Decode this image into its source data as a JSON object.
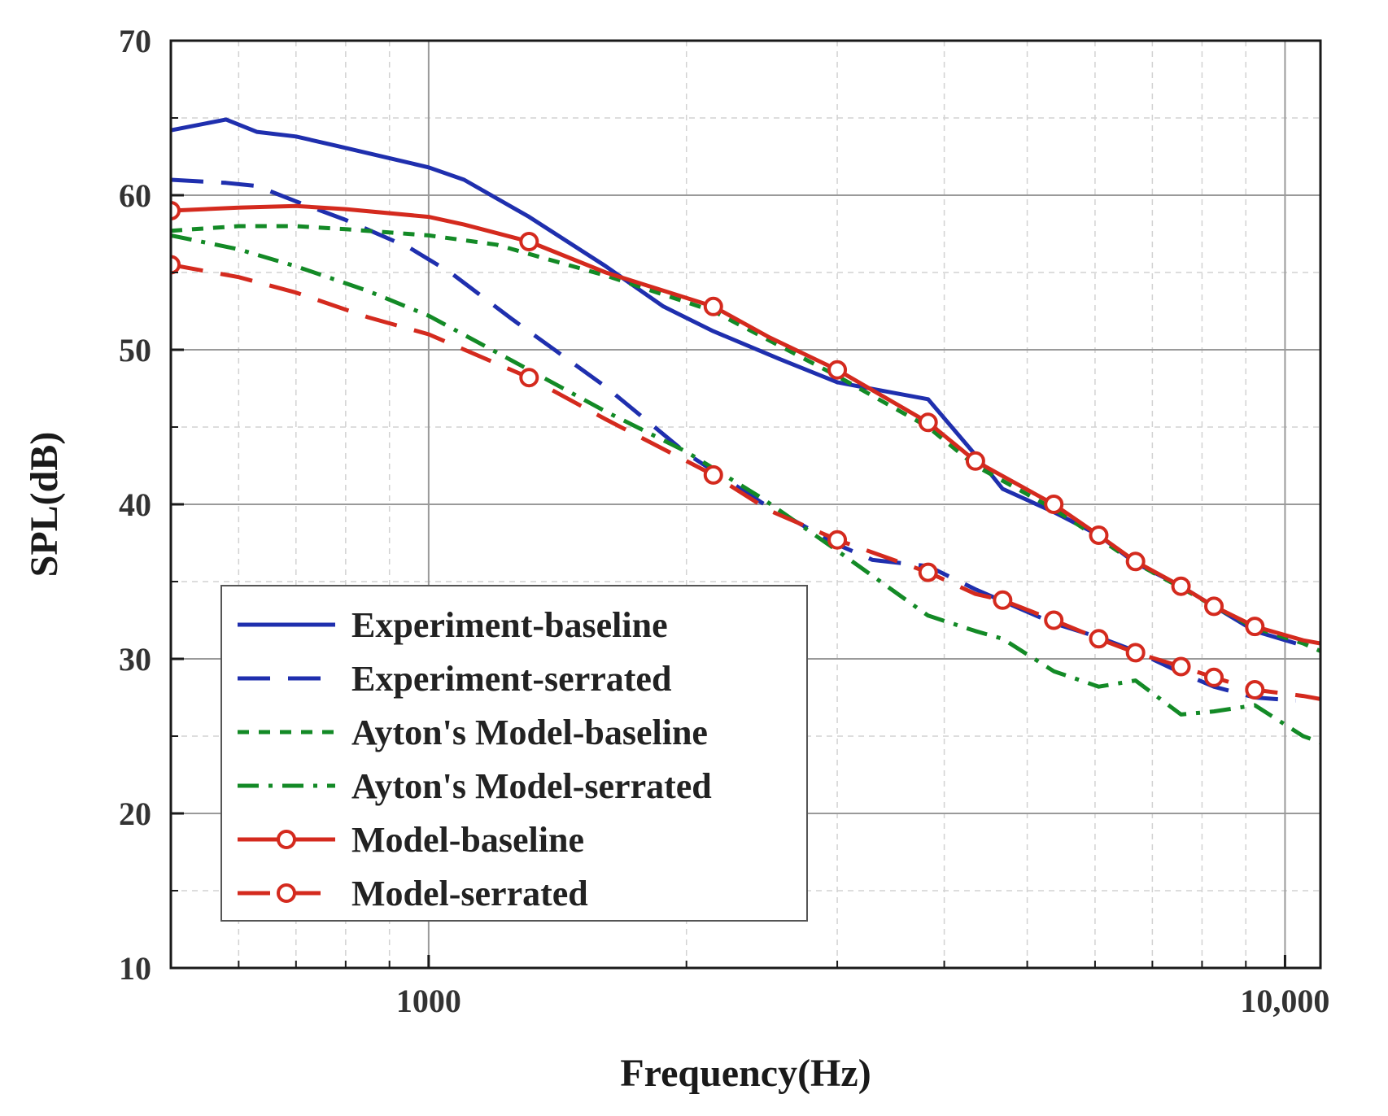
{
  "chart_data": {
    "type": "line",
    "title": "",
    "xlabel": "Frequency(Hz)",
    "ylabel": "SPL(dB)",
    "xscale": "log",
    "xlim": [
      500,
      11000
    ],
    "ylim": [
      10,
      70
    ],
    "x_ticks": [
      {
        "value": 1000,
        "label": "1000"
      },
      {
        "value": 10000,
        "label": "10,000"
      }
    ],
    "y_ticks": [
      10,
      20,
      30,
      40,
      50,
      60,
      70
    ],
    "grid": true,
    "legend_position": "bottom-left",
    "series": [
      {
        "name": "Experiment-baseline",
        "color": "#1f2fae",
        "style": "solid",
        "marker": "none",
        "points": [
          [
            500,
            64.2
          ],
          [
            580,
            64.9
          ],
          [
            630,
            64.1
          ],
          [
            700,
            63.8
          ],
          [
            780,
            63.2
          ],
          [
            1000,
            61.8
          ],
          [
            1100,
            61.0
          ],
          [
            1310,
            58.6
          ],
          [
            1610,
            55.4
          ],
          [
            1880,
            52.8
          ],
          [
            2150,
            51.2
          ],
          [
            2570,
            49.4
          ],
          [
            3000,
            47.9
          ],
          [
            3200,
            47.6
          ],
          [
            3500,
            47.2
          ],
          [
            3830,
            46.8
          ],
          [
            4350,
            43.2
          ],
          [
            4680,
            41.0
          ],
          [
            5370,
            39.5
          ],
          [
            6060,
            38.0
          ],
          [
            6690,
            36.2
          ],
          [
            7560,
            34.7
          ],
          [
            8260,
            33.4
          ],
          [
            9220,
            31.8
          ],
          [
            10300,
            31.0
          ]
        ]
      },
      {
        "name": "Experiment-serrated",
        "color": "#1f2fae",
        "style": "dash",
        "marker": "none",
        "points": [
          [
            500,
            61.0
          ],
          [
            580,
            60.8
          ],
          [
            630,
            60.6
          ],
          [
            700,
            59.6
          ],
          [
            800,
            58.4
          ],
          [
            950,
            56.6
          ],
          [
            1060,
            55.0
          ],
          [
            1250,
            52.0
          ],
          [
            1610,
            47.6
          ],
          [
            2000,
            43.3
          ],
          [
            2450,
            40.1
          ],
          [
            3000,
            37.4
          ],
          [
            3300,
            36.4
          ],
          [
            3830,
            36.0
          ],
          [
            4350,
            34.5
          ],
          [
            5370,
            32.3
          ],
          [
            6060,
            31.4
          ],
          [
            6690,
            30.5
          ],
          [
            7560,
            29.1
          ],
          [
            8260,
            28.2
          ],
          [
            9220,
            27.5
          ],
          [
            10300,
            27.3
          ]
        ]
      },
      {
        "name": "Ayton's Model-baseline",
        "color": "#138a26",
        "style": "short-dash",
        "marker": "none",
        "points": [
          [
            500,
            57.7
          ],
          [
            600,
            58.0
          ],
          [
            700,
            58.0
          ],
          [
            800,
            57.8
          ],
          [
            1000,
            57.4
          ],
          [
            1200,
            56.8
          ],
          [
            1310,
            56.2
          ],
          [
            1610,
            54.8
          ],
          [
            2150,
            52.5
          ],
          [
            3000,
            48.3
          ],
          [
            3830,
            45.0
          ],
          [
            4350,
            42.5
          ],
          [
            5370,
            39.7
          ],
          [
            6060,
            37.8
          ],
          [
            6690,
            36.2
          ],
          [
            7560,
            34.6
          ],
          [
            8260,
            33.4
          ],
          [
            9220,
            32.0
          ],
          [
            10500,
            31.0
          ],
          [
            11000,
            30.5
          ]
        ]
      },
      {
        "name": "Ayton's Model-serrated",
        "color": "#138a26",
        "style": "dash-dot",
        "marker": "none",
        "points": [
          [
            500,
            57.4
          ],
          [
            600,
            56.5
          ],
          [
            700,
            55.4
          ],
          [
            850,
            53.8
          ],
          [
            1000,
            52.2
          ],
          [
            1310,
            48.7
          ],
          [
            1610,
            46.0
          ],
          [
            2000,
            43.4
          ],
          [
            2450,
            40.4
          ],
          [
            3000,
            37.0
          ],
          [
            3830,
            32.8
          ],
          [
            4350,
            31.8
          ],
          [
            4680,
            31.3
          ],
          [
            5370,
            29.2
          ],
          [
            6060,
            28.2
          ],
          [
            6690,
            28.6
          ],
          [
            7560,
            26.4
          ],
          [
            8260,
            26.6
          ],
          [
            9220,
            27.0
          ],
          [
            10500,
            25.0
          ],
          [
            11000,
            24.6
          ]
        ]
      },
      {
        "name": "Model-baseline",
        "color": "#d42a1e",
        "style": "solid",
        "marker": "circle",
        "points": [
          [
            500,
            59.0
          ],
          [
            600,
            59.2
          ],
          [
            700,
            59.3
          ],
          [
            800,
            59.1
          ],
          [
            1000,
            58.6
          ],
          [
            1100,
            58.1
          ],
          [
            1310,
            57.0
          ],
          [
            1610,
            55.0
          ],
          [
            2150,
            52.8
          ],
          [
            2500,
            50.8
          ],
          [
            3000,
            48.7
          ],
          [
            3830,
            45.3
          ],
          [
            4350,
            42.8
          ],
          [
            5370,
            40.0
          ],
          [
            6060,
            38.0
          ],
          [
            6690,
            36.3
          ],
          [
            7560,
            34.7
          ],
          [
            8260,
            33.4
          ],
          [
            9220,
            32.1
          ],
          [
            10500,
            31.2
          ],
          [
            11000,
            31.0
          ]
        ],
        "marker_x": [
          500,
          1310,
          2150,
          3000,
          3830,
          4350,
          5370,
          6060,
          6690,
          7560,
          8260,
          9220
        ]
      },
      {
        "name": "Model-serrated",
        "color": "#d42a1e",
        "style": "dash",
        "marker": "circle",
        "points": [
          [
            500,
            55.5
          ],
          [
            600,
            54.7
          ],
          [
            700,
            53.7
          ],
          [
            850,
            52.1
          ],
          [
            1000,
            51.0
          ],
          [
            1310,
            48.2
          ],
          [
            1610,
            45.5
          ],
          [
            2150,
            41.9
          ],
          [
            2500,
            39.6
          ],
          [
            3000,
            37.7
          ],
          [
            3830,
            35.6
          ],
          [
            4350,
            34.2
          ],
          [
            4680,
            33.8
          ],
          [
            5370,
            32.5
          ],
          [
            6060,
            31.3
          ],
          [
            6690,
            30.4
          ],
          [
            7560,
            29.5
          ],
          [
            8260,
            28.8
          ],
          [
            9220,
            28.0
          ],
          [
            10500,
            27.6
          ],
          [
            11000,
            27.4
          ]
        ],
        "marker_x": [
          500,
          1310,
          2150,
          3000,
          3830,
          4680,
          5370,
          6060,
          6690,
          7560,
          8260,
          9220
        ]
      }
    ]
  }
}
